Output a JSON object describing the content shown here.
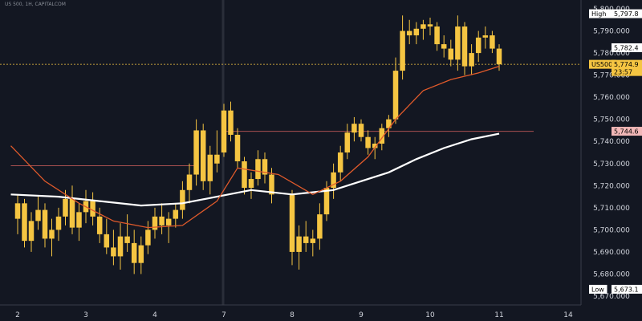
{
  "header": {
    "symbol_line": "US 500, 1H, CAPITALCOM"
  },
  "colors": {
    "background": "#131722",
    "candle": "#f5c542",
    "ma_fast": "#e05a2b",
    "ma_slow": "#ffffff",
    "level_line": "#a85050",
    "grid": "#2a2e39",
    "text": "#d1d4dc",
    "label_bg": "#f5c542",
    "label_text": "#000000",
    "label_red_bg": "#f2b8b8",
    "label_white_bg": "#ffffff"
  },
  "chart_data": {
    "type": "candlestick",
    "title": "",
    "xlabel": "",
    "ylabel": "",
    "x_ticks": [
      "2",
      "3",
      "4",
      "7",
      "8",
      "9",
      "10",
      "11",
      "14"
    ],
    "x_tick_days": [
      2,
      3,
      4,
      7,
      8,
      9,
      10,
      11,
      14
    ],
    "y_ticks": [
      5670,
      5680,
      5690,
      5700,
      5710,
      5720,
      5730,
      5740,
      5750,
      5760,
      5770,
      5780,
      5790,
      5800
    ],
    "ylim": [
      5666,
      5804
    ],
    "grid": false,
    "price_labels": [
      {
        "name": "High",
        "value": 5797.8,
        "text": "5,797.8"
      },
      {
        "name": "",
        "value": 5782.4,
        "text": "5,782.4"
      },
      {
        "name": "US500",
        "value": 5774.9,
        "text": "5,774.9",
        "countdown": "23:57"
      },
      {
        "name": "",
        "value": 5744.6,
        "text": "5,744.6"
      },
      {
        "name": "Low",
        "value": 5673.1,
        "text": "5,673.1"
      }
    ],
    "levels": [
      {
        "value": 5744.6,
        "from_day": 7.0,
        "to_day": 12.5
      },
      {
        "value": 5729.0,
        "from_day": 1.9,
        "to_day": 4.6
      }
    ],
    "candles": [
      [
        2.0,
        5705,
        5716,
        5698,
        5712
      ],
      [
        2.1,
        5712,
        5714,
        5692,
        5695
      ],
      [
        2.2,
        5695,
        5708,
        5690,
        5704
      ],
      [
        2.3,
        5704,
        5715,
        5700,
        5709
      ],
      [
        2.4,
        5709,
        5712,
        5692,
        5696
      ],
      [
        2.5,
        5696,
        5705,
        5688,
        5700
      ],
      [
        2.6,
        5700,
        5710,
        5695,
        5706
      ],
      [
        2.7,
        5706,
        5718,
        5702,
        5714
      ],
      [
        2.8,
        5714,
        5720,
        5698,
        5701
      ],
      [
        2.9,
        5701,
        5712,
        5695,
        5708
      ],
      [
        3.0,
        5708,
        5718,
        5703,
        5713
      ],
      [
        3.1,
        5713,
        5717,
        5702,
        5706
      ],
      [
        3.2,
        5706,
        5710,
        5694,
        5698
      ],
      [
        3.3,
        5698,
        5705,
        5689,
        5692
      ],
      [
        3.4,
        5692,
        5700,
        5684,
        5688
      ],
      [
        3.5,
        5688,
        5703,
        5682,
        5697
      ],
      [
        3.6,
        5697,
        5707,
        5690,
        5694
      ],
      [
        3.7,
        5694,
        5700,
        5680,
        5685
      ],
      [
        3.8,
        5685,
        5697,
        5680,
        5693
      ],
      [
        3.9,
        5693,
        5704,
        5689,
        5700
      ],
      [
        4.0,
        5700,
        5710,
        5696,
        5706
      ],
      [
        4.1,
        5706,
        5712,
        5698,
        5702
      ],
      [
        4.2,
        5702,
        5708,
        5694,
        5705
      ],
      [
        4.3,
        5705,
        5712,
        5701,
        5709
      ],
      [
        4.4,
        5709,
        5722,
        5705,
        5718
      ],
      [
        4.5,
        5718,
        5730,
        5712,
        5725
      ],
      [
        4.6,
        5725,
        5750,
        5720,
        5745
      ],
      [
        4.7,
        5745,
        5748,
        5718,
        5722
      ],
      [
        4.8,
        5722,
        5738,
        5716,
        5734
      ],
      [
        4.9,
        5734,
        5745,
        5726,
        5730
      ],
      [
        7.0,
        5735,
        5757,
        5733,
        5754
      ],
      [
        7.1,
        5754,
        5758,
        5740,
        5743
      ],
      [
        7.2,
        5743,
        5746,
        5728,
        5731
      ],
      [
        7.3,
        5731,
        5733,
        5716,
        5719
      ],
      [
        7.4,
        5719,
        5726,
        5714,
        5723
      ],
      [
        7.5,
        5723,
        5736,
        5720,
        5732
      ],
      [
        7.6,
        5732,
        5735,
        5721,
        5725
      ],
      [
        7.7,
        5725,
        5728,
        5712,
        5716
      ],
      [
        8.0,
        5716,
        5718,
        5684,
        5690
      ],
      [
        8.1,
        5690,
        5702,
        5682,
        5697
      ],
      [
        8.2,
        5697,
        5704,
        5690,
        5694
      ],
      [
        8.3,
        5694,
        5700,
        5688,
        5696
      ],
      [
        8.4,
        5696,
        5712,
        5691,
        5707
      ],
      [
        8.5,
        5707,
        5722,
        5704,
        5719
      ],
      [
        8.6,
        5719,
        5730,
        5714,
        5726
      ],
      [
        8.7,
        5726,
        5738,
        5722,
        5735
      ],
      [
        8.8,
        5735,
        5748,
        5732,
        5744
      ],
      [
        8.9,
        5744,
        5751,
        5740,
        5748
      ],
      [
        9.0,
        5748,
        5750,
        5740,
        5742
      ],
      [
        9.1,
        5742,
        5745,
        5734,
        5737
      ],
      [
        9.2,
        5737,
        5742,
        5732,
        5739
      ],
      [
        9.3,
        5739,
        5748,
        5736,
        5746
      ],
      [
        9.4,
        5746,
        5752,
        5742,
        5750
      ],
      [
        9.5,
        5750,
        5778,
        5748,
        5772
      ],
      [
        9.6,
        5772,
        5797,
        5768,
        5790
      ],
      [
        9.7,
        5790,
        5795,
        5784,
        5788
      ],
      [
        9.8,
        5788,
        5794,
        5784,
        5791
      ],
      [
        9.9,
        5791,
        5795,
        5786,
        5793
      ],
      [
        10.0,
        5793,
        5796,
        5788,
        5792
      ],
      [
        10.1,
        5792,
        5794,
        5781,
        5784
      ],
      [
        10.2,
        5784,
        5788,
        5778,
        5782
      ],
      [
        10.3,
        5782,
        5786,
        5774,
        5777
      ],
      [
        10.4,
        5777,
        5797,
        5772,
        5792
      ],
      [
        10.5,
        5792,
        5794,
        5770,
        5774
      ],
      [
        10.6,
        5774,
        5784,
        5770,
        5780
      ],
      [
        10.7,
        5780,
        5790,
        5776,
        5787
      ],
      [
        10.8,
        5787,
        5792,
        5782,
        5788
      ],
      [
        10.9,
        5788,
        5790,
        5780,
        5782
      ],
      [
        11.0,
        5782,
        5784,
        5772,
        5774.9
      ]
    ],
    "ma_fast": [
      [
        1.9,
        5738
      ],
      [
        2.4,
        5722
      ],
      [
        2.9,
        5712
      ],
      [
        3.4,
        5704
      ],
      [
        3.9,
        5701
      ],
      [
        4.4,
        5702
      ],
      [
        4.9,
        5713
      ],
      [
        7.2,
        5728
      ],
      [
        7.8,
        5725
      ],
      [
        8.3,
        5716
      ],
      [
        8.7,
        5722
      ],
      [
        9.1,
        5733
      ],
      [
        9.5,
        5750
      ],
      [
        9.9,
        5763
      ],
      [
        10.3,
        5768
      ],
      [
        10.7,
        5771
      ],
      [
        11.0,
        5774
      ]
    ],
    "ma_slow": [
      [
        1.9,
        5716
      ],
      [
        2.6,
        5715
      ],
      [
        3.2,
        5713
      ],
      [
        3.8,
        5711
      ],
      [
        4.4,
        5712
      ],
      [
        4.9,
        5715
      ],
      [
        7.4,
        5718
      ],
      [
        8.0,
        5716
      ],
      [
        8.6,
        5718
      ],
      [
        9.0,
        5722
      ],
      [
        9.4,
        5726
      ],
      [
        9.8,
        5732
      ],
      [
        10.2,
        5737
      ],
      [
        10.6,
        5741
      ],
      [
        11.0,
        5743.5
      ]
    ]
  }
}
